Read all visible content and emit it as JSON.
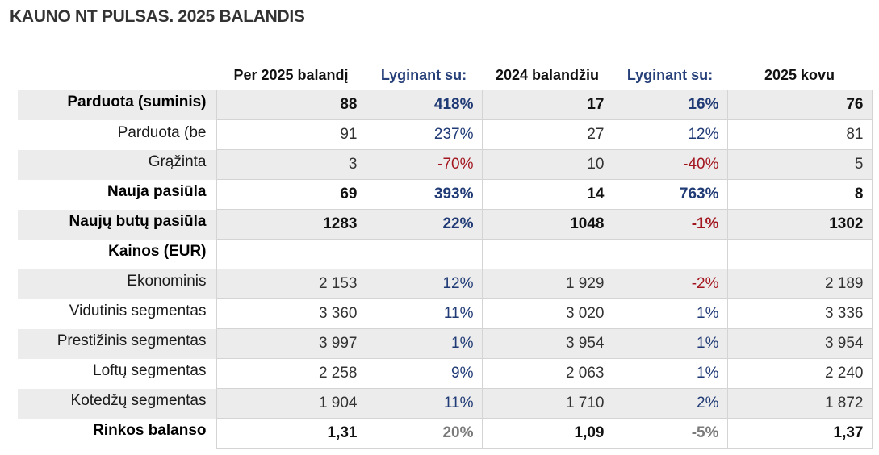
{
  "title": "KAUNO NT PULSAS. 2025 BALANDIS",
  "header": {
    "col1": "Per 2025 balandį",
    "col2": "Lyginant su:",
    "col3": "2024 balandžiu",
    "col4": "Lyginant su:",
    "col5": "2025 kovu"
  },
  "rows": [
    {
      "label": "Parduota (suminis)",
      "v1": "88",
      "c1": "418%",
      "v2": "17",
      "c2": "16%",
      "v3": "76"
    },
    {
      "label": "Parduota (be",
      "v1": "91",
      "c1": "237%",
      "v2": "27",
      "c2": "12%",
      "v3": "81"
    },
    {
      "label": "Grąžinta",
      "v1": "3",
      "c1": "-70%",
      "v2": "10",
      "c2": "-40%",
      "v3": "5"
    },
    {
      "label": "Nauja pasiūla",
      "v1": "69",
      "c1": "393%",
      "v2": "14",
      "c2": "763%",
      "v3": "8"
    },
    {
      "label": "Naujų butų pasiūla",
      "v1": "1283",
      "c1": "22%",
      "v2": "1048",
      "c2": "-1%",
      "v3": "1302"
    },
    {
      "label": "Kainos (EUR)",
      "v1": "",
      "c1": "",
      "v2": "",
      "c2": "",
      "v3": ""
    },
    {
      "label": "Ekonominis",
      "v1": "2 153",
      "c1": "12%",
      "v2": "1 929",
      "c2": "-2%",
      "v3": "2 189"
    },
    {
      "label": "Vidutinis segmentas",
      "v1": "3 360",
      "c1": "11%",
      "v2": "3 020",
      "c2": "1%",
      "v3": "3 336"
    },
    {
      "label": "Prestižinis segmentas",
      "v1": "3 997",
      "c1": "1%",
      "v2": "3 954",
      "c2": "1%",
      "v3": "3 954"
    },
    {
      "label": "Loftų segmentas",
      "v1": "2 258",
      "c1": "9%",
      "v2": "2 063",
      "c2": "1%",
      "v3": "2 240"
    },
    {
      "label": "Kotedžų segmentas",
      "v1": "1 904",
      "c1": "11%",
      "v2": "1 710",
      "c2": "2%",
      "v3": "1 872"
    },
    {
      "label": "Rinkos balanso",
      "v1": "1,31",
      "c1": "20%",
      "v2": "1,09",
      "c2": "-5%",
      "v3": "1,37"
    }
  ],
  "colors": {
    "positive": "#1f3a75",
    "negative": "#a3161f",
    "neutral": "#7a7a7a",
    "shade": "#ececec"
  }
}
